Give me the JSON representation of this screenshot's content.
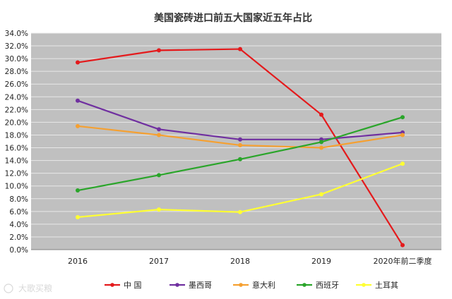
{
  "chart_data": {
    "type": "line",
    "title": "美国瓷砖进口前五大国家近五年占比",
    "categories": [
      "2016",
      "2017",
      "2018",
      "2019",
      "2020年前二季度"
    ],
    "y_ticks": [
      "0.0%",
      "2.0%",
      "4.0%",
      "6.0%",
      "8.0%",
      "10.0%",
      "12.0%",
      "14.0%",
      "16.0%",
      "18.0%",
      "20.0%",
      "22.0%",
      "24.0%",
      "26.0%",
      "28.0%",
      "30.0%",
      "32.0%",
      "34.0%"
    ],
    "ylim": [
      0,
      34
    ],
    "y_unit": "%",
    "grid": true,
    "legend_position": "bottom",
    "series": [
      {
        "name": "中 国",
        "color": "#e41a1c",
        "values": [
          29.4,
          31.3,
          31.5,
          21.2,
          0.7
        ]
      },
      {
        "name": "墨西哥",
        "color": "#7030a0",
        "values": [
          23.4,
          18.9,
          17.3,
          17.3,
          18.4
        ]
      },
      {
        "name": "意大利",
        "color": "#f5a031",
        "values": [
          19.4,
          18.0,
          16.4,
          16.0,
          18.0
        ]
      },
      {
        "name": "西班牙",
        "color": "#2aa52a",
        "values": [
          9.3,
          11.7,
          14.2,
          16.9,
          20.8
        ]
      },
      {
        "name": "土耳其",
        "color": "#ffff33",
        "values": [
          5.1,
          6.3,
          5.9,
          8.7,
          13.5
        ]
      }
    ],
    "plot_background": "#c0c0c0",
    "grid_color": "#e8e8e8"
  },
  "watermark": "大歌买粮"
}
